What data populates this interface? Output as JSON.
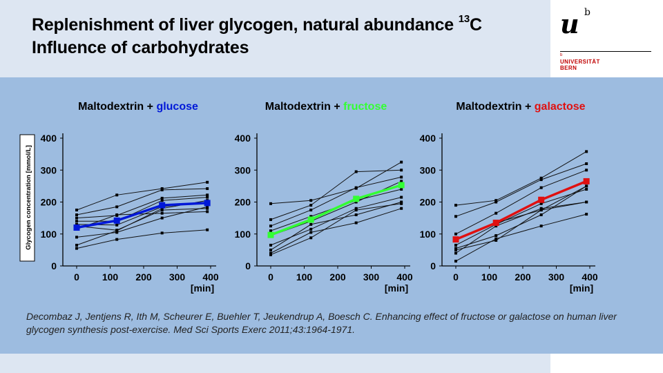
{
  "slide": {
    "title_line1": "Replenishment of liver glycogen, natural abundance ",
    "title_sup": "13",
    "title_line1_end": "C",
    "title_line2": "Influence of carbohydrates",
    "logo_mark": "u",
    "logo_sup": "b",
    "logo_small": "b",
    "logo_universitat": "UNIVERSITÄT",
    "logo_bern": "BERN",
    "citation": "Decombaz J, Jentjens R, Ith M, Scheurer E, Buehler T, Jeukendrup A, Boesch C. Enhancing effect of fructose  or galactose on human liver glycogen synthesis post-exercise. Med Sci Sports Exerc 2011;43:1964-1971.",
    "colors": {
      "background_band": "#dde6f2",
      "chart_background": "#9dbce0",
      "glucose": "#0018d8",
      "fructose": "#33ff33",
      "galactose": "#e01010",
      "individual": "#111111"
    }
  },
  "chart_data": [
    {
      "type": "line",
      "title_prefix": "Maltodextrin + ",
      "title_sugar": "glucose",
      "mean_color": "#0018d8",
      "ylabel": "Glycogen concentration [mmol/L]",
      "xlabel": "[min]",
      "xticks": [
        0,
        100,
        200,
        300,
        400
      ],
      "yticks": [
        0,
        100,
        200,
        300,
        400
      ],
      "xlim": [
        0,
        400
      ],
      "ylim": [
        0,
        400
      ],
      "x": [
        0,
        120,
        255,
        390
      ],
      "mean": [
        120,
        142,
        190,
        197
      ],
      "series": [
        [
          175,
          222,
          242,
          262
        ],
        [
          160,
          185,
          238,
          242
        ],
        [
          150,
          158,
          212,
          222
        ],
        [
          140,
          140,
          205,
          215
        ],
        [
          130,
          128,
          185,
          200
        ],
        [
          125,
          112,
          175,
          180
        ],
        [
          115,
          160,
          165,
          170
        ],
        [
          90,
          105,
          150,
          185
        ],
        [
          65,
          110,
          180,
          205
        ],
        [
          55,
          83,
          103,
          113
        ]
      ]
    },
    {
      "type": "line",
      "title_prefix": "Maltodextrin + ",
      "title_sugar": "fructose",
      "mean_color": "#33ff33",
      "ylabel": "",
      "xlabel": "[min]",
      "xticks": [
        0,
        100,
        200,
        300,
        400
      ],
      "yticks": [
        0,
        100,
        200,
        300,
        400
      ],
      "xlim": [
        0,
        400
      ],
      "ylim": [
        0,
        400
      ],
      "x": [
        0,
        120,
        255,
        390
      ],
      "mean": [
        97,
        145,
        210,
        253
      ],
      "series": [
        [
          195,
          205,
          243,
          325
        ],
        [
          145,
          190,
          295,
          300
        ],
        [
          125,
          175,
          245,
          278
        ],
        [
          110,
          155,
          205,
          240
        ],
        [
          95,
          140,
          200,
          265
        ],
        [
          65,
          115,
          180,
          215
        ],
        [
          50,
          130,
          160,
          200
        ],
        [
          40,
          105,
          135,
          180
        ],
        [
          35,
          88,
          175,
          195
        ]
      ]
    },
    {
      "type": "line",
      "title_prefix": "Maltodextrin + ",
      "title_sugar": "galactose",
      "mean_color": "#e01010",
      "ylabel": "",
      "xlabel": "[min]",
      "xticks": [
        0,
        100,
        200,
        300,
        400
      ],
      "yticks": [
        0,
        100,
        200,
        300,
        400
      ],
      "xlim": [
        0,
        400
      ],
      "ylim": [
        0,
        400
      ],
      "x": [
        0,
        120,
        255,
        390
      ],
      "mean": [
        83,
        135,
        207,
        265
      ],
      "series": [
        [
          190,
          205,
          275,
          358
        ],
        [
          155,
          200,
          270,
          320
        ],
        [
          100,
          165,
          245,
          300
        ],
        [
          85,
          135,
          175,
          250
        ],
        [
          65,
          130,
          195,
          240
        ],
        [
          55,
          95,
          160,
          250
        ],
        [
          50,
          80,
          175,
          200
        ],
        [
          40,
          125,
          180,
          200
        ],
        [
          15,
          85,
          125,
          162
        ]
      ]
    }
  ]
}
